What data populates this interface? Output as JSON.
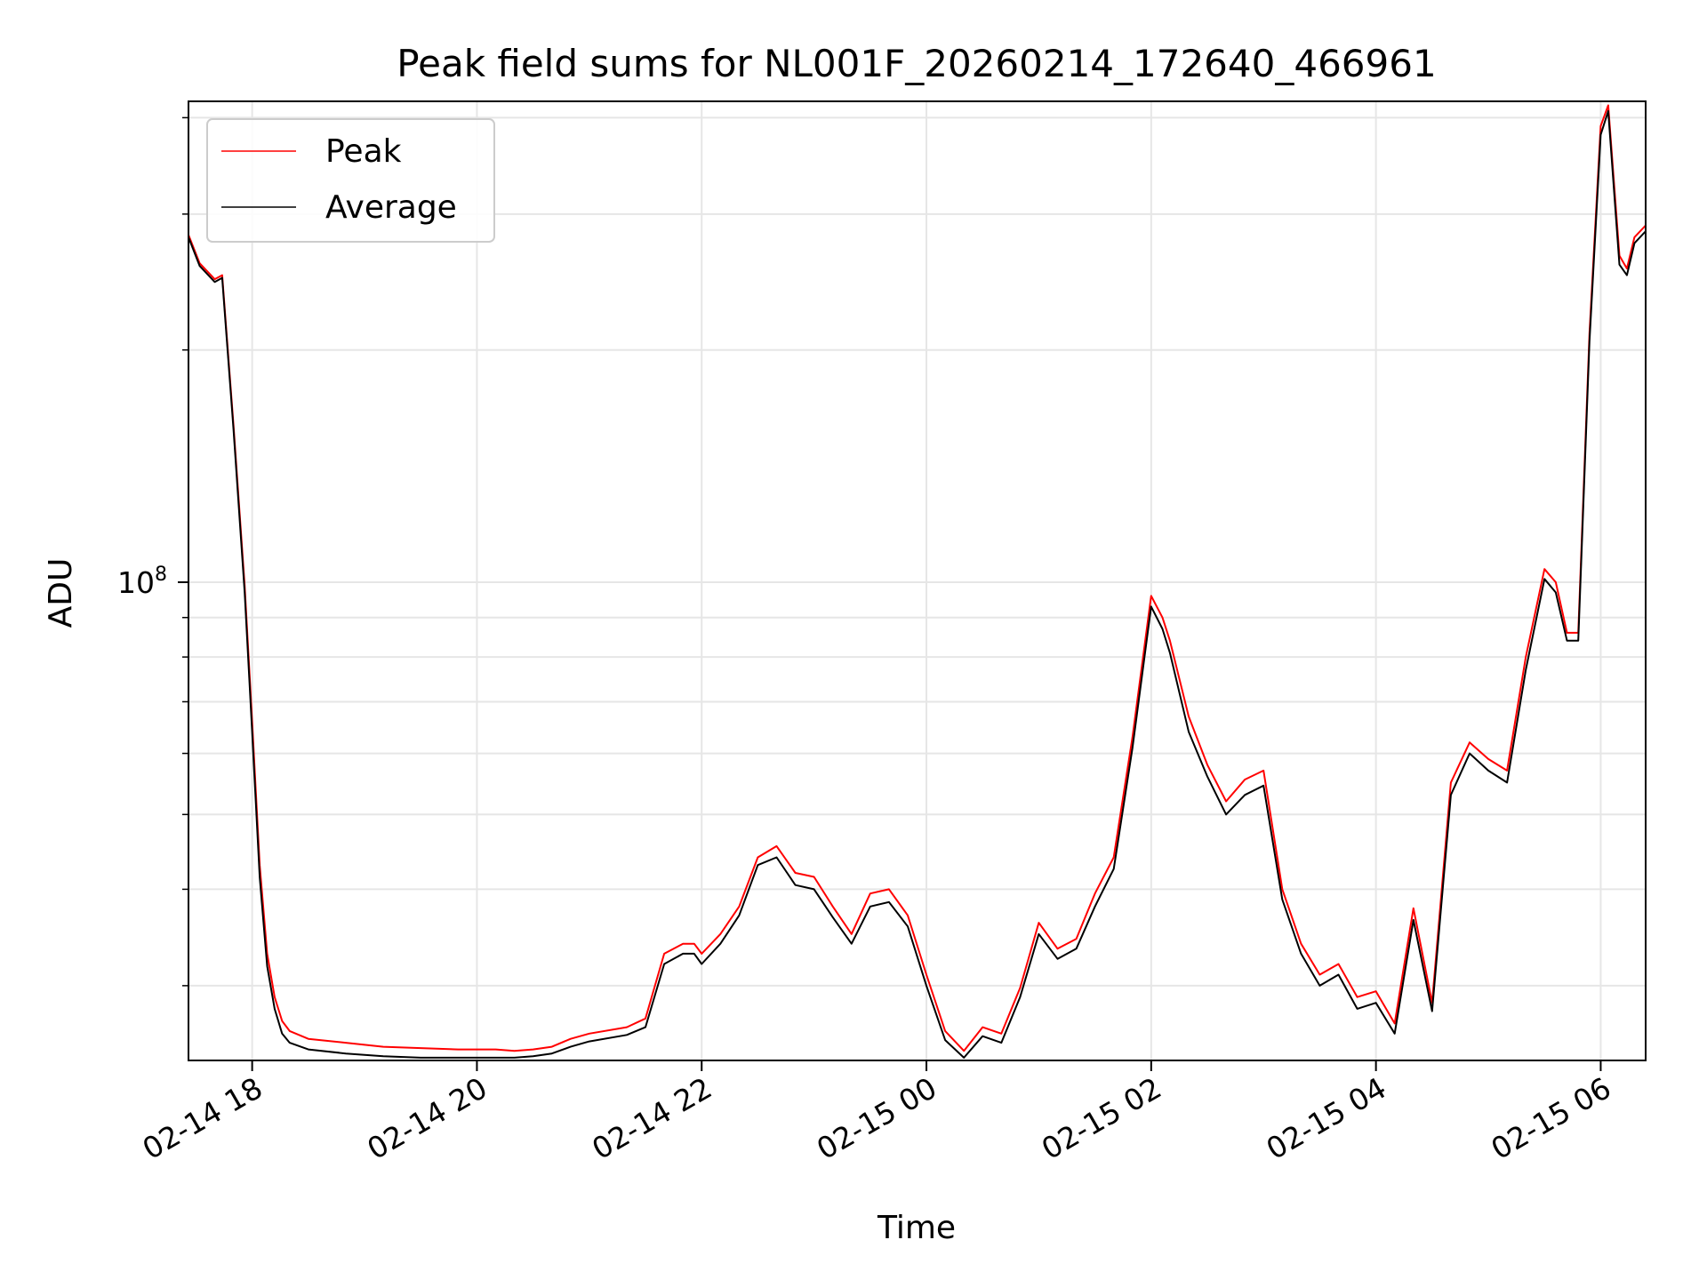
{
  "chart_data": {
    "type": "line",
    "title": "Peak field sums for NL001F_20260214_172640_466961",
    "xlabel": "Time",
    "ylabel": "ADU",
    "yscale": "log",
    "xlim": [
      "2026-02-14 17:26",
      "2026-02-15 06:24"
    ],
    "ylim": [
      24000000,
      420000000
    ],
    "grid": true,
    "legend_position": "upper-left",
    "x_ticks": [
      "02-14 18",
      "02-14 20",
      "02-14 22",
      "02-15 00",
      "02-15 02",
      "02-15 04",
      "02-15 06"
    ],
    "y_ticks": [
      {
        "label": "10",
        "exponent": "8",
        "value": 100000000
      }
    ],
    "series": [
      {
        "name": "Peak",
        "color": "#ff0000",
        "x": [
          "2026-02-14 17:26",
          "2026-02-14 17:32",
          "2026-02-14 17:40",
          "2026-02-14 17:44",
          "2026-02-14 17:50",
          "2026-02-14 17:56",
          "2026-02-14 18:00",
          "2026-02-14 18:04",
          "2026-02-14 18:08",
          "2026-02-14 18:12",
          "2026-02-14 18:16",
          "2026-02-14 18:20",
          "2026-02-14 18:30",
          "2026-02-14 18:50",
          "2026-02-14 19:10",
          "2026-02-14 19:30",
          "2026-02-14 19:50",
          "2026-02-14 20:10",
          "2026-02-14 20:20",
          "2026-02-14 20:30",
          "2026-02-14 20:40",
          "2026-02-14 20:50",
          "2026-02-14 21:00",
          "2026-02-14 21:20",
          "2026-02-14 21:30",
          "2026-02-14 21:40",
          "2026-02-14 21:50",
          "2026-02-14 21:56",
          "2026-02-14 22:00",
          "2026-02-14 22:10",
          "2026-02-14 22:20",
          "2026-02-14 22:30",
          "2026-02-14 22:40",
          "2026-02-14 22:50",
          "2026-02-14 23:00",
          "2026-02-14 23:10",
          "2026-02-14 23:20",
          "2026-02-14 23:30",
          "2026-02-14 23:40",
          "2026-02-14 23:50",
          "2026-02-15 00:00",
          "2026-02-15 00:10",
          "2026-02-15 00:20",
          "2026-02-15 00:30",
          "2026-02-15 00:40",
          "2026-02-15 00:50",
          "2026-02-15 01:00",
          "2026-02-15 01:10",
          "2026-02-15 01:20",
          "2026-02-15 01:30",
          "2026-02-15 01:40",
          "2026-02-15 01:50",
          "2026-02-15 02:00",
          "2026-02-15 02:06",
          "2026-02-15 02:10",
          "2026-02-15 02:20",
          "2026-02-15 02:30",
          "2026-02-15 02:40",
          "2026-02-15 02:50",
          "2026-02-15 03:00",
          "2026-02-15 03:10",
          "2026-02-15 03:20",
          "2026-02-15 03:30",
          "2026-02-15 03:40",
          "2026-02-15 03:50",
          "2026-02-15 04:00",
          "2026-02-15 04:10",
          "2026-02-15 04:20",
          "2026-02-15 04:30",
          "2026-02-15 04:40",
          "2026-02-15 04:50",
          "2026-02-15 05:00",
          "2026-02-15 05:10",
          "2026-02-15 05:20",
          "2026-02-15 05:30",
          "2026-02-15 05:36",
          "2026-02-15 05:42",
          "2026-02-15 05:48",
          "2026-02-15 05:54",
          "2026-02-15 06:00",
          "2026-02-15 06:04",
          "2026-02-15 06:10",
          "2026-02-15 06:14",
          "2026-02-15 06:18",
          "2026-02-15 06:24"
        ],
        "values": [
          282000000,
          259000000,
          247000000,
          250000000,
          160000000,
          99000000,
          66000000,
          43000000,
          33000000,
          29000000,
          27000000,
          26200000,
          25600000,
          25300000,
          25000000,
          24900000,
          24800000,
          24800000,
          24700000,
          24800000,
          25000000,
          25600000,
          26000000,
          26500000,
          27200000,
          33000000,
          34000000,
          34000000,
          33000000,
          35000000,
          38000000,
          44000000,
          45500000,
          42000000,
          41500000,
          38000000,
          35000000,
          39500000,
          40000000,
          37000000,
          31000000,
          26200000,
          24700000,
          26500000,
          26000000,
          29800000,
          36200000,
          33500000,
          34500000,
          39500000,
          44000000,
          63000000,
          96000000,
          90000000,
          84000000,
          67000000,
          58000000,
          52000000,
          55500000,
          57000000,
          40000000,
          34000000,
          31000000,
          32000000,
          29000000,
          29500000,
          26800000,
          37800000,
          28500000,
          55000000,
          62000000,
          59000000,
          57000000,
          80000000,
          104000000,
          100000000,
          86000000,
          86000000,
          210000000,
          390000000,
          415000000,
          265000000,
          255000000,
          280000000,
          290000000
        ]
      },
      {
        "name": "Average",
        "color": "#000000",
        "x": [
          "2026-02-14 17:26",
          "2026-02-14 17:32",
          "2026-02-14 17:40",
          "2026-02-14 17:44",
          "2026-02-14 17:50",
          "2026-02-14 17:56",
          "2026-02-14 18:00",
          "2026-02-14 18:04",
          "2026-02-14 18:08",
          "2026-02-14 18:12",
          "2026-02-14 18:16",
          "2026-02-14 18:20",
          "2026-02-14 18:30",
          "2026-02-14 18:50",
          "2026-02-14 19:10",
          "2026-02-14 19:30",
          "2026-02-14 19:50",
          "2026-02-14 20:10",
          "2026-02-14 20:20",
          "2026-02-14 20:30",
          "2026-02-14 20:40",
          "2026-02-14 20:50",
          "2026-02-14 21:00",
          "2026-02-14 21:20",
          "2026-02-14 21:30",
          "2026-02-14 21:40",
          "2026-02-14 21:50",
          "2026-02-14 21:56",
          "2026-02-14 22:00",
          "2026-02-14 22:10",
          "2026-02-14 22:20",
          "2026-02-14 22:30",
          "2026-02-14 22:40",
          "2026-02-14 22:50",
          "2026-02-14 23:00",
          "2026-02-14 23:10",
          "2026-02-14 23:20",
          "2026-02-14 23:30",
          "2026-02-14 23:40",
          "2026-02-14 23:50",
          "2026-02-15 00:00",
          "2026-02-15 00:10",
          "2026-02-15 00:20",
          "2026-02-15 00:30",
          "2026-02-15 00:40",
          "2026-02-15 00:50",
          "2026-02-15 01:00",
          "2026-02-15 01:10",
          "2026-02-15 01:20",
          "2026-02-15 01:30",
          "2026-02-15 01:40",
          "2026-02-15 01:50",
          "2026-02-15 02:00",
          "2026-02-15 02:06",
          "2026-02-15 02:10",
          "2026-02-15 02:20",
          "2026-02-15 02:30",
          "2026-02-15 02:40",
          "2026-02-15 02:50",
          "2026-02-15 03:00",
          "2026-02-15 03:10",
          "2026-02-15 03:20",
          "2026-02-15 03:30",
          "2026-02-15 03:40",
          "2026-02-15 03:50",
          "2026-02-15 04:00",
          "2026-02-15 04:10",
          "2026-02-15 04:20",
          "2026-02-15 04:30",
          "2026-02-15 04:40",
          "2026-02-15 04:50",
          "2026-02-15 05:00",
          "2026-02-15 05:10",
          "2026-02-15 05:20",
          "2026-02-15 05:30",
          "2026-02-15 05:36",
          "2026-02-15 05:42",
          "2026-02-15 05:48",
          "2026-02-15 05:54",
          "2026-02-15 06:00",
          "2026-02-15 06:04",
          "2026-02-15 06:10",
          "2026-02-15 06:14",
          "2026-02-15 06:18",
          "2026-02-15 06:24"
        ],
        "values": [
          280000000,
          257000000,
          245000000,
          248000000,
          158000000,
          97000000,
          64000000,
          41500000,
          31800000,
          28000000,
          26000000,
          25300000,
          24800000,
          24500000,
          24300000,
          24200000,
          24200000,
          24200000,
          24200000,
          24300000,
          24500000,
          25000000,
          25400000,
          25900000,
          26500000,
          32000000,
          33000000,
          33000000,
          32000000,
          34000000,
          37000000,
          43000000,
          44000000,
          40500000,
          40000000,
          36800000,
          34000000,
          38000000,
          38500000,
          35800000,
          30000000,
          25500000,
          24200000,
          25800000,
          25300000,
          29000000,
          35000000,
          32500000,
          33500000,
          38000000,
          42500000,
          61000000,
          93000000,
          87000000,
          81000000,
          64000000,
          56000000,
          50000000,
          53000000,
          54500000,
          38800000,
          33000000,
          30000000,
          31000000,
          28000000,
          28500000,
          26000000,
          36500000,
          27800000,
          53000000,
          60000000,
          57000000,
          55000000,
          77000000,
          101000000,
          97000000,
          84000000,
          84000000,
          205000000,
          380000000,
          408000000,
          258000000,
          250000000,
          275000000,
          285000000
        ]
      }
    ]
  }
}
